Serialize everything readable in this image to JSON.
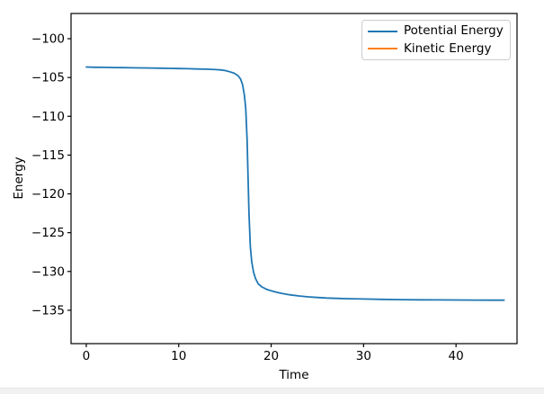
{
  "window": {
    "background": "#ffffff",
    "bottom_strip_color": "#f1f1f1"
  },
  "chart_data": {
    "type": "line",
    "title": "",
    "xlabel": "Time",
    "ylabel": "Energy",
    "xlim": [
      -1.65,
      46.6
    ],
    "ylim": [
      -139.3,
      -96.75
    ],
    "x_ticks": [
      0,
      10,
      20,
      30,
      40
    ],
    "y_ticks": [
      -100,
      -105,
      -110,
      -115,
      -120,
      -125,
      -130,
      -135
    ],
    "grid": false,
    "legend_position": "upper right",
    "axis_color": "#000000",
    "series": [
      {
        "name": "Potential Energy",
        "color": "#1f77b4",
        "x": [
          0,
          1,
          2,
          3,
          4,
          5,
          6,
          7,
          8,
          9,
          10,
          11,
          12,
          13,
          14,
          14.5,
          15,
          15.5,
          16,
          16.4,
          16.7,
          16.9,
          17.1,
          17.25,
          17.4,
          17.5,
          17.6,
          17.75,
          17.9,
          18.1,
          18.3,
          18.6,
          19,
          19.5,
          20,
          20.5,
          21,
          22,
          23,
          24,
          25,
          26,
          28,
          30,
          32,
          34,
          36,
          38,
          40,
          42,
          44,
          45.2
        ],
        "y": [
          -103.65,
          -103.68,
          -103.7,
          -103.72,
          -103.73,
          -103.75,
          -103.76,
          -103.78,
          -103.8,
          -103.82,
          -103.84,
          -103.87,
          -103.9,
          -103.93,
          -103.98,
          -104.02,
          -104.1,
          -104.25,
          -104.45,
          -104.75,
          -105.2,
          -105.9,
          -107.2,
          -109.0,
          -113.0,
          -118.0,
          -122.5,
          -126.8,
          -128.8,
          -130.1,
          -130.9,
          -131.6,
          -132.0,
          -132.3,
          -132.5,
          -132.65,
          -132.8,
          -133.0,
          -133.15,
          -133.27,
          -133.35,
          -133.42,
          -133.5,
          -133.55,
          -133.6,
          -133.63,
          -133.65,
          -133.67,
          -133.68,
          -133.69,
          -133.7,
          -133.7
        ]
      },
      {
        "name": "Kinetic Energy",
        "color": "#ff7f0e",
        "x": [],
        "y": []
      }
    ]
  }
}
